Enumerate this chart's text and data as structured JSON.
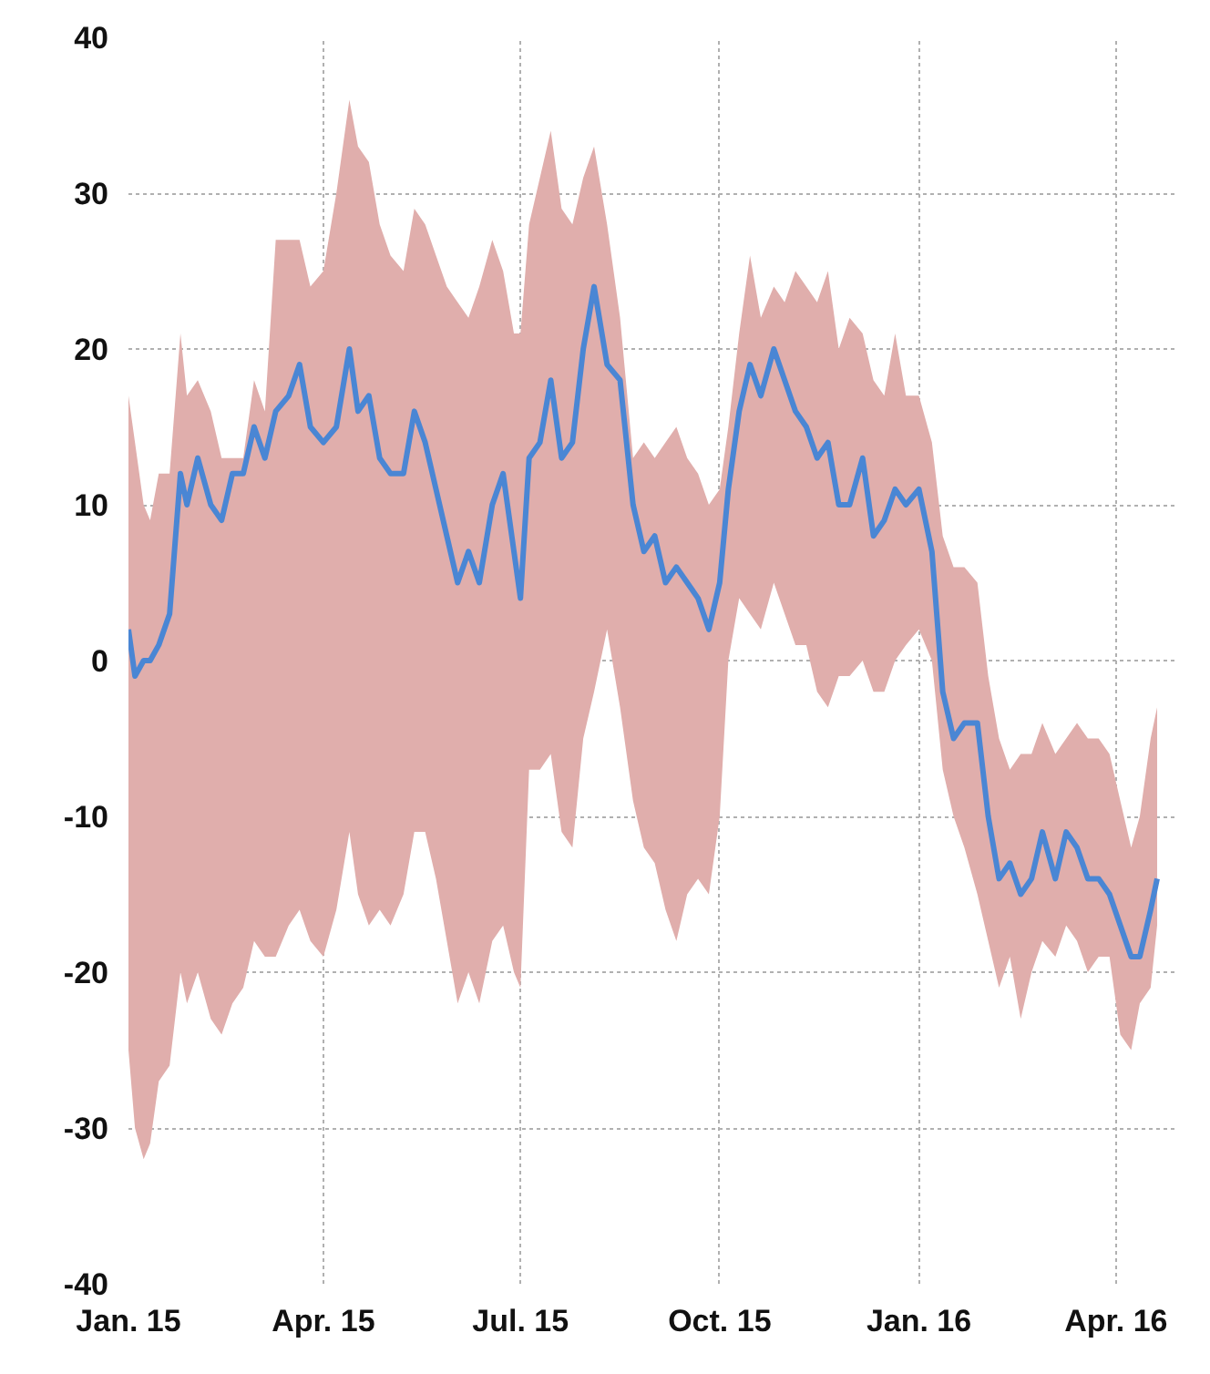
{
  "chart_data": {
    "type": "line",
    "x": [
      "2015-01-01",
      "2015-01-04",
      "2015-01-08",
      "2015-01-11",
      "2015-01-15",
      "2015-01-20",
      "2015-01-25",
      "2015-01-28",
      "2015-02-02",
      "2015-02-08",
      "2015-02-13",
      "2015-02-18",
      "2015-02-23",
      "2015-02-28",
      "2015-03-05",
      "2015-03-10",
      "2015-03-16",
      "2015-03-21",
      "2015-03-26",
      "2015-04-01",
      "2015-04-07",
      "2015-04-13",
      "2015-04-17",
      "2015-04-22",
      "2015-04-27",
      "2015-05-02",
      "2015-05-08",
      "2015-05-13",
      "2015-05-18",
      "2015-05-23",
      "2015-05-28",
      "2015-06-02",
      "2015-06-07",
      "2015-06-12",
      "2015-06-18",
      "2015-06-23",
      "2015-06-28",
      "2015-07-01",
      "2015-07-05",
      "2015-07-10",
      "2015-07-15",
      "2015-07-20",
      "2015-07-25",
      "2015-07-30",
      "2015-08-04",
      "2015-08-10",
      "2015-08-16",
      "2015-08-22",
      "2015-08-27",
      "2015-09-01",
      "2015-09-06",
      "2015-09-11",
      "2015-09-16",
      "2015-09-21",
      "2015-09-26",
      "2015-10-01",
      "2015-10-05",
      "2015-10-10",
      "2015-10-15",
      "2015-10-20",
      "2015-10-26",
      "2015-10-31",
      "2015-11-05",
      "2015-11-10",
      "2015-11-15",
      "2015-11-20",
      "2015-11-25",
      "2015-11-30",
      "2015-12-06",
      "2015-12-11",
      "2015-12-16",
      "2015-12-21",
      "2015-12-26",
      "2016-01-01",
      "2016-01-07",
      "2016-01-12",
      "2016-01-17",
      "2016-01-22",
      "2016-01-28",
      "2016-02-02",
      "2016-02-07",
      "2016-02-12",
      "2016-02-17",
      "2016-02-22",
      "2016-02-27",
      "2016-03-04",
      "2016-03-09",
      "2016-03-14",
      "2016-03-19",
      "2016-03-24",
      "2016-03-29",
      "2016-04-03",
      "2016-04-08",
      "2016-04-12",
      "2016-04-17",
      "2016-04-20"
    ],
    "series": [
      {
        "color": "#4a86d4",
        "values": [
          2,
          -1,
          0,
          0,
          1,
          3,
          12,
          10,
          13,
          10,
          9,
          12,
          12,
          15,
          13,
          16,
          17,
          19,
          15,
          14,
          15,
          20,
          16,
          17,
          13,
          12,
          12,
          16,
          14,
          11,
          8,
          5,
          7,
          5,
          10,
          12,
          7,
          4,
          13,
          14,
          18,
          13,
          14,
          20,
          24,
          19,
          18,
          10,
          7,
          8,
          5,
          6,
          5,
          4,
          2,
          5,
          11,
          16,
          19,
          17,
          20,
          18,
          16,
          15,
          13,
          14,
          10,
          10,
          13,
          8,
          9,
          11,
          10,
          11,
          7,
          -2,
          -5,
          -4,
          -4,
          -10,
          -14,
          -13,
          -15,
          -14,
          -11,
          -14,
          -11,
          -12,
          -14,
          -14,
          -15,
          -17,
          -19,
          -19,
          -16,
          -14
        ],
        "upper": [
          17,
          14,
          10,
          9,
          12,
          12,
          21,
          17,
          18,
          16,
          13,
          13,
          13,
          18,
          16,
          27,
          27,
          27,
          24,
          25,
          30,
          36,
          33,
          32,
          28,
          26,
          25,
          29,
          28,
          26,
          24,
          23,
          22,
          24,
          27,
          25,
          21,
          21,
          28,
          31,
          34,
          29,
          28,
          31,
          33,
          28,
          22,
          13,
          14,
          13,
          14,
          15,
          13,
          12,
          10,
          11,
          15,
          21,
          26,
          22,
          24,
          23,
          25,
          24,
          23,
          25,
          20,
          22,
          21,
          18,
          17,
          21,
          17,
          17,
          14,
          8,
          6,
          6,
          5,
          -1,
          -5,
          -7,
          -6,
          -6,
          -4,
          -6,
          -5,
          -4,
          -5,
          -5,
          -6,
          -9,
          -12,
          -10,
          -5,
          -3
        ],
        "lower": [
          -25,
          -30,
          -32,
          -31,
          -27,
          -26,
          -20,
          -22,
          -20,
          -23,
          -24,
          -22,
          -21,
          -18,
          -19,
          -19,
          -17,
          -16,
          -18,
          -19,
          -16,
          -11,
          -15,
          -17,
          -16,
          -17,
          -15,
          -11,
          -11,
          -14,
          -18,
          -22,
          -20,
          -22,
          -18,
          -17,
          -20,
          -21,
          -7,
          -7,
          -6,
          -11,
          -12,
          -5,
          -2,
          2,
          -3,
          -9,
          -12,
          -13,
          -16,
          -18,
          -15,
          -14,
          -15,
          -10,
          0,
          4,
          3,
          2,
          5,
          3,
          1,
          1,
          -2,
          -3,
          -1,
          -1,
          0,
          -2,
          -2,
          0,
          1,
          2,
          0,
          -7,
          -10,
          -12,
          -15,
          -18,
          -21,
          -19,
          -23,
          -20,
          -18,
          -19,
          -17,
          -18,
          -20,
          -19,
          -19,
          -24,
          -25,
          -22,
          -21,
          -17
        ]
      }
    ],
    "xlim": [
      "2015-01-01",
      "2016-04-28"
    ],
    "xticks": [
      {
        "value": "2015-01-01",
        "label": "Jan. 15"
      },
      {
        "value": "2015-04-01",
        "label": "Apr. 15"
      },
      {
        "value": "2015-07-01",
        "label": "Jul. 15"
      },
      {
        "value": "2015-10-01",
        "label": "Oct. 15"
      },
      {
        "value": "2016-01-01",
        "label": "Jan. 16"
      },
      {
        "value": "2016-04-01",
        "label": "Apr. 16"
      }
    ],
    "ylim": [
      -40,
      40
    ],
    "yticks": [
      -40,
      -30,
      -20,
      -10,
      0,
      10,
      20,
      30,
      40
    ],
    "grid": true,
    "marker": "none",
    "line_style": "solid"
  }
}
